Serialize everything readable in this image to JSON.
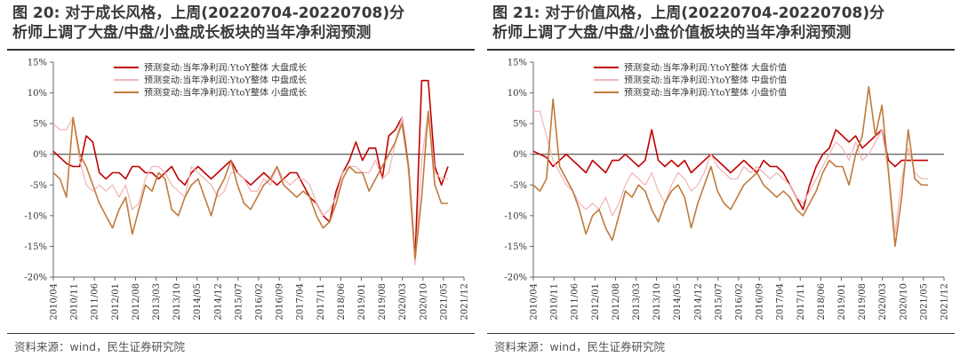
{
  "source": "资料来源：wind，民生证券研究院",
  "chart_data": [
    {
      "type": "line",
      "title_line1": "图 20: 对于成长风格，上周(20220704-20220708)分",
      "title_line2": "析师上调了大盘/中盘/小盘成长板块的当年净利润预测",
      "xlabel": "",
      "ylabel": "",
      "ylim": [
        -20,
        15
      ],
      "yticks": [
        15,
        10,
        5,
        0,
        -5,
        -10,
        -15,
        -20
      ],
      "ytick_labels": [
        "15%",
        "10%",
        "5%",
        "0%",
        "-5%",
        "-10%",
        "-15%",
        "-20%"
      ],
      "xtick_labels": [
        "2010/04",
        "2010/11",
        "2011/06",
        "2012/01",
        "2012/08",
        "2013/03",
        "2013/10",
        "2014/05",
        "2014/12",
        "2015/07",
        "2016/02",
        "2016/09",
        "2017/04",
        "2017/11",
        "2018/06",
        "2019/01",
        "2019/08",
        "2020/03",
        "2020/10",
        "2021/05",
        "2021/12"
      ],
      "legend_position": "top-center",
      "series": [
        {
          "name": "预测变动:当年净利润:YtoY整体 大盘成长",
          "color": "#c00000",
          "values": [
            0.5,
            -0.5,
            -1.5,
            -2,
            -2,
            3,
            2,
            -3,
            -4,
            -3,
            -3,
            -4,
            -2,
            -2,
            -3,
            -3,
            -4,
            -3,
            -2,
            -4,
            -5,
            -3,
            -2,
            -3,
            -4,
            -3,
            -2,
            -1,
            -3,
            -4,
            -5,
            -4,
            -3,
            -4,
            -5,
            -4,
            -3,
            -3,
            -5,
            -7,
            -8,
            -10,
            -11,
            -6,
            -3,
            -1,
            2,
            -1,
            1,
            1,
            -4,
            3,
            4,
            6,
            -2,
            -17,
            12,
            12,
            -2,
            -5,
            -2
          ]
        },
        {
          "name": "预测变动:当年净利润:YtoY整体 中盘成长",
          "color": "#f2b8b8",
          "values": [
            5,
            4,
            4,
            6,
            -1,
            -5,
            -6,
            -5,
            -6,
            -5,
            -7,
            -5,
            -9,
            -8,
            -4,
            -2,
            -2,
            -3,
            -5,
            -6,
            -7,
            -2,
            -3,
            -4,
            -5,
            -7,
            -6,
            -3,
            -3,
            -4,
            -6,
            -6,
            -4,
            -5,
            -2,
            -4,
            -5,
            -4,
            -4,
            -5,
            -8,
            -10,
            -9,
            -7,
            -3,
            -2,
            -2,
            -3,
            -3,
            -1,
            -4,
            -3,
            2,
            6,
            -3,
            -18,
            -1,
            7,
            -3,
            -4,
            -4
          ]
        },
        {
          "name": "预测变动:当年净利润:YtoY整体 小盘成长",
          "color": "#c07a3c",
          "values": [
            -3,
            -4,
            -7,
            6,
            0,
            -2,
            -5,
            -8,
            -10,
            -12,
            -9,
            -7,
            -13,
            -9,
            -5,
            -6,
            -3,
            -4,
            -9,
            -10,
            -7,
            -5,
            -4,
            -7,
            -10,
            -6,
            -4,
            -1,
            -5,
            -8,
            -9,
            -7,
            -5,
            -4,
            -2,
            -5,
            -6,
            -7,
            -6,
            -7,
            -10,
            -12,
            -11,
            -8,
            -4,
            -2,
            -3,
            -3,
            -6,
            -4,
            -2,
            0,
            2,
            5,
            -2,
            -17,
            -7,
            7,
            -5,
            -8,
            -8
          ]
        }
      ]
    },
    {
      "type": "line",
      "title_line1": "图 21: 对于价值风格，上周(20220704-20220708)分",
      "title_line2": "析师上调了大盘/中盘/小盘价值板块的当年净利润预测",
      "xlabel": "",
      "ylabel": "",
      "ylim": [
        -20,
        15
      ],
      "yticks": [
        15,
        10,
        5,
        0,
        -5,
        -10,
        -15,
        -20
      ],
      "ytick_labels": [
        "15%",
        "10%",
        "5%",
        "0%",
        "-5%",
        "-10%",
        "-15%",
        "-20%"
      ],
      "xtick_labels": [
        "2010/04",
        "2010/11",
        "2011/06",
        "2012/01",
        "2012/08",
        "2013/03",
        "2013/10",
        "2014/05",
        "2014/12",
        "2015/07",
        "2016/02",
        "2016/09",
        "2017/04",
        "2017/11",
        "2018/06",
        "2019/01",
        "2019/08",
        "2020/03",
        "2020/10",
        "2021/05",
        "2021/12"
      ],
      "legend_position": "top-center",
      "series": [
        {
          "name": "预测变动:当年净利润:YtoY整体 大盘价值",
          "color": "#c00000",
          "values": [
            0.5,
            0,
            -0.5,
            -2,
            -1,
            0,
            -1,
            -2,
            -3,
            -1,
            -2,
            -3,
            -1,
            -1,
            0,
            -1,
            -2,
            -1,
            4,
            -1,
            -2,
            -1,
            -2,
            -1,
            -3,
            -2,
            -1,
            0,
            -1,
            -2,
            -3,
            -2,
            -1,
            -2,
            -3,
            -1,
            -2,
            -2,
            -3,
            -5,
            -7,
            -9,
            -5,
            -2,
            0,
            1,
            4,
            3,
            2,
            3,
            1,
            2,
            3,
            4,
            -1,
            -2,
            -1,
            -1,
            -1,
            -1,
            -1
          ]
        },
        {
          "name": "预测变动:当年净利润:YtoY整体 中盘价值",
          "color": "#f2b8b8",
          "values": [
            7,
            7,
            3,
            -1,
            -3,
            -5,
            -6,
            -8,
            -9,
            -8,
            -9,
            -7,
            -10,
            -8,
            -5,
            -3,
            -4,
            -5,
            -3,
            -6,
            -8,
            -5,
            -3,
            -4,
            -6,
            -5,
            -3,
            0,
            -2,
            -3,
            -4,
            -4,
            -2,
            -3,
            -2,
            -3,
            -4,
            -3,
            -4,
            -5,
            -7,
            -8,
            -6,
            -4,
            -2,
            0,
            2,
            1,
            -1,
            2,
            -1,
            0,
            2,
            4,
            -3,
            -13,
            -4,
            1,
            -3,
            -4,
            -4
          ]
        },
        {
          "name": "预测变动:当年净利润:YtoY整体 小盘价值",
          "color": "#c07a3c",
          "values": [
            -5,
            -6,
            -4,
            9,
            -2,
            -4,
            -6,
            -9,
            -13,
            -10,
            -9,
            -12,
            -14,
            -10,
            -6,
            -7,
            -5,
            -6,
            -9,
            -11,
            -8,
            -6,
            -5,
            -7,
            -12,
            -8,
            -5,
            -2,
            -6,
            -8,
            -9,
            -7,
            -5,
            -4,
            -3,
            -5,
            -6,
            -7,
            -6,
            -7,
            -9,
            -10,
            -8,
            -6,
            -3,
            -1,
            -2,
            -2,
            -5,
            0,
            3,
            11,
            3,
            8,
            -3,
            -15,
            -7,
            4,
            -4,
            -5,
            -5
          ]
        }
      ]
    }
  ]
}
